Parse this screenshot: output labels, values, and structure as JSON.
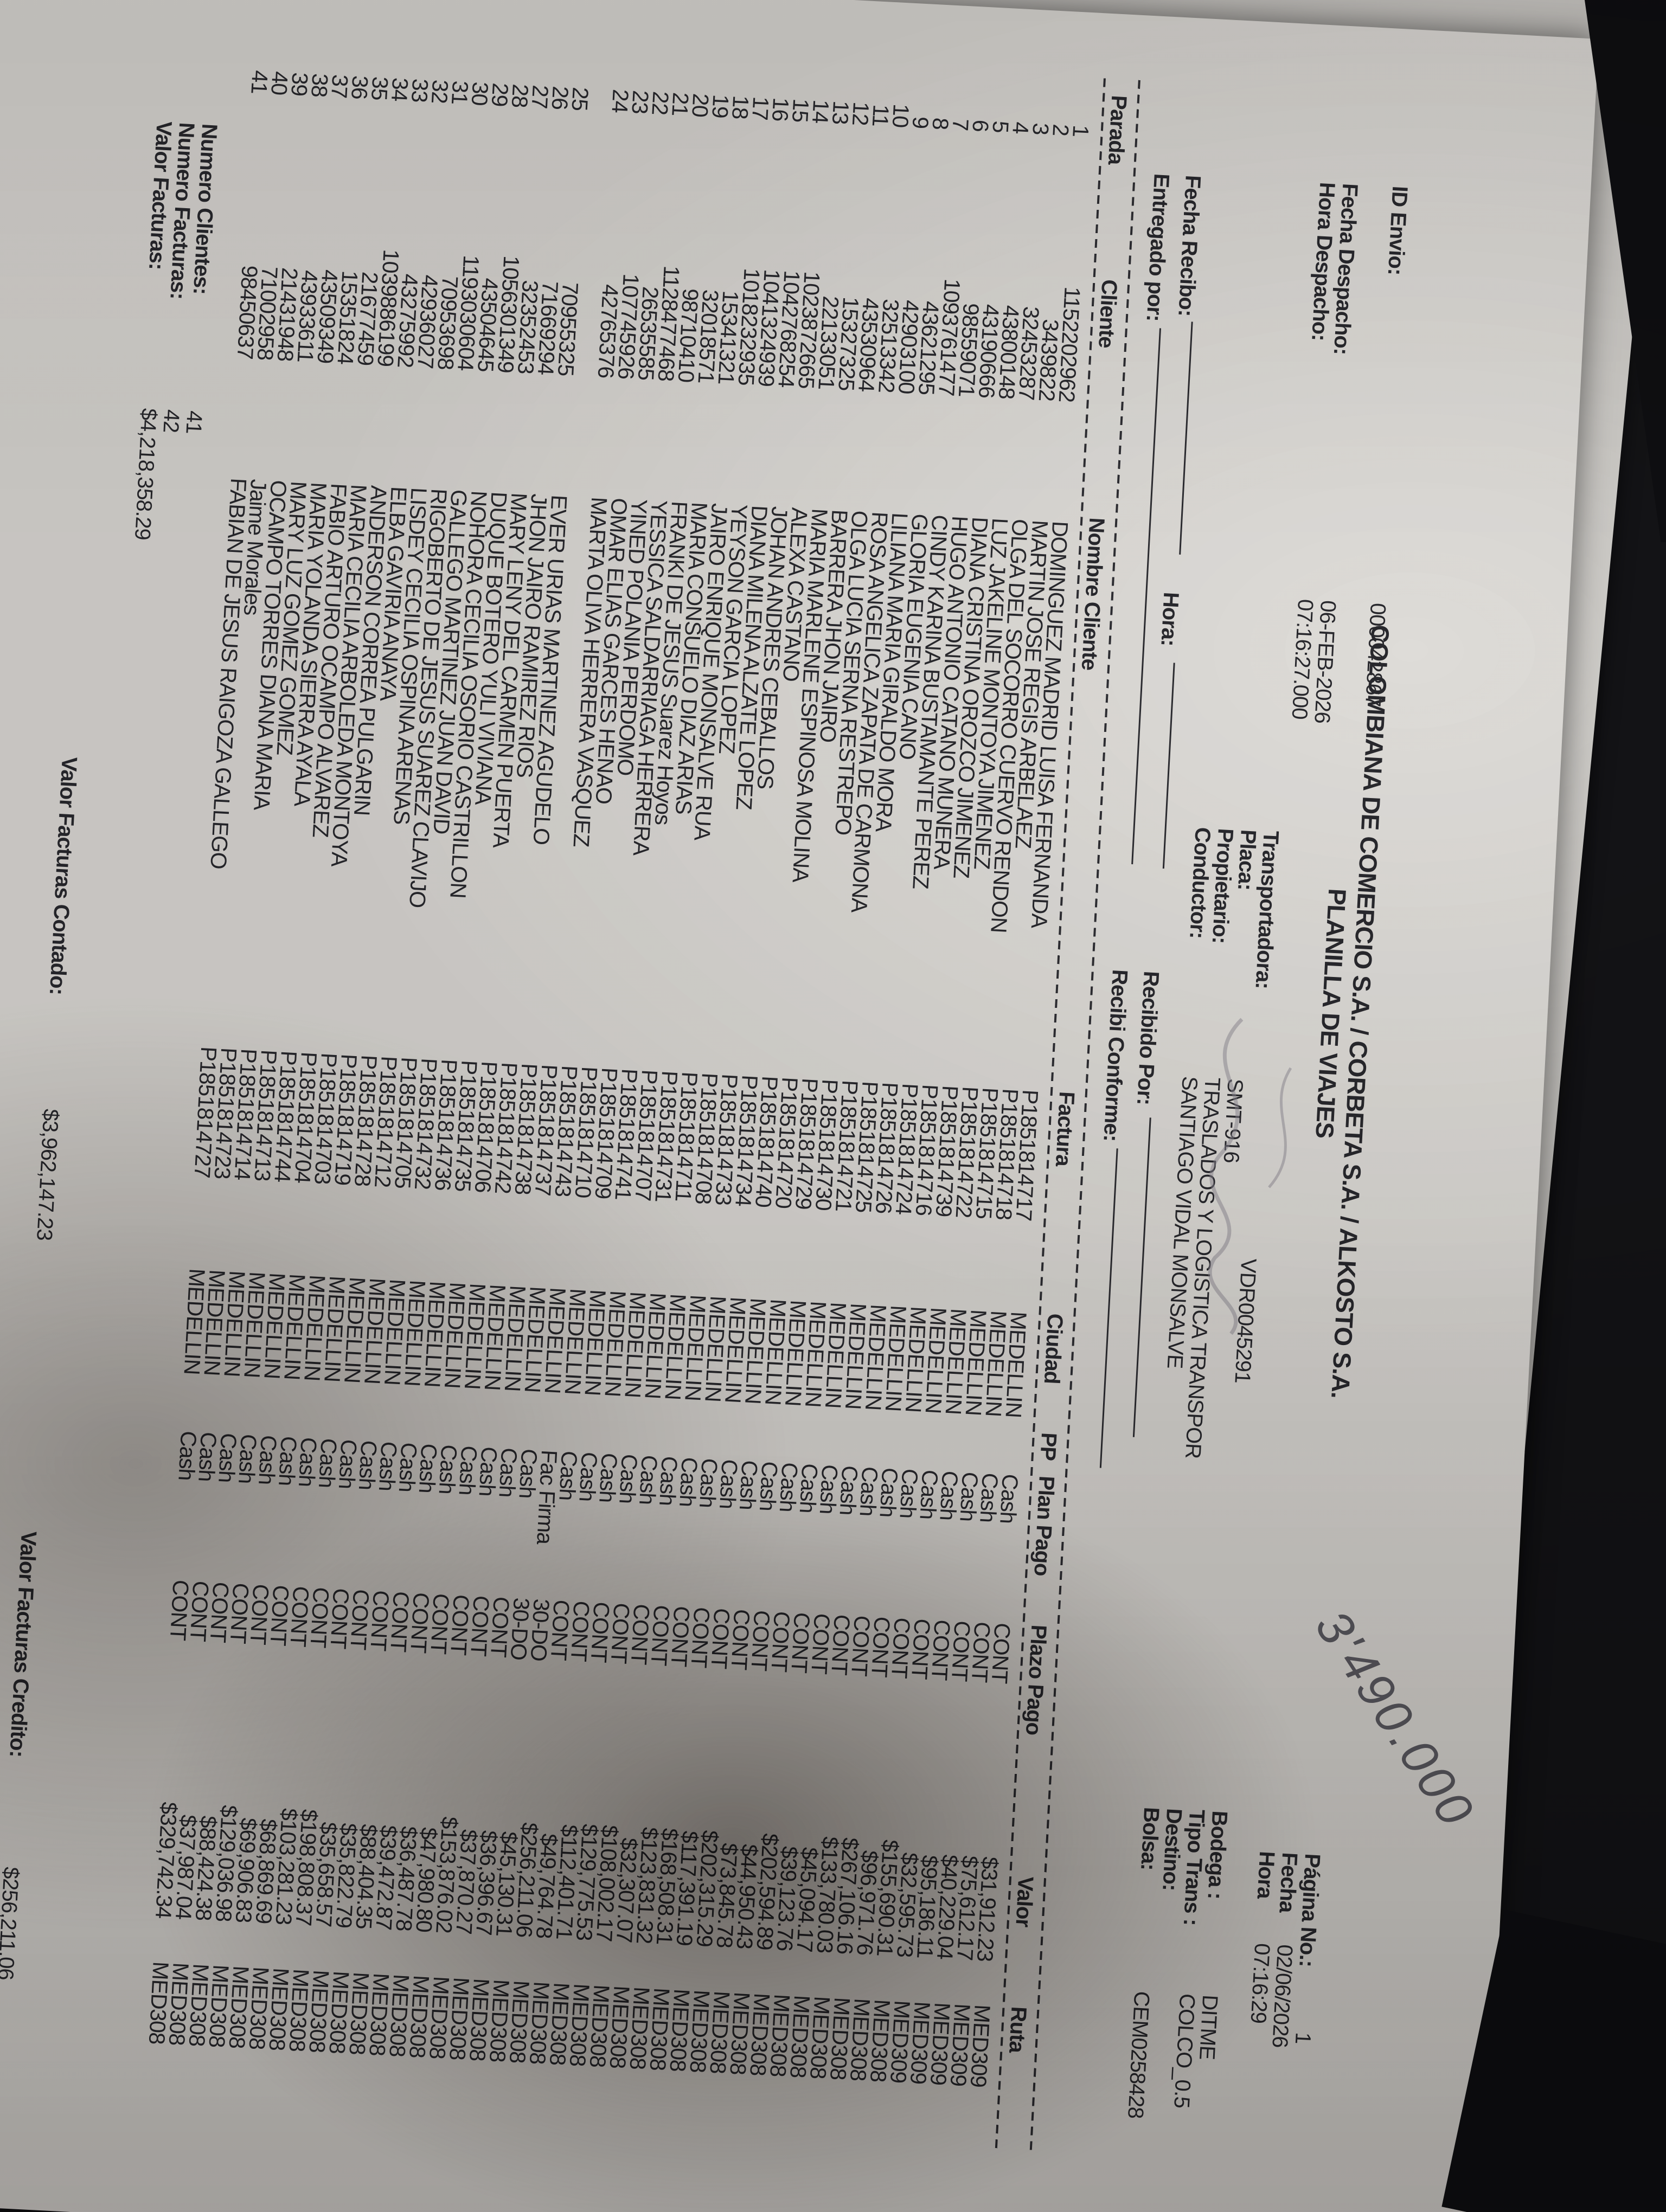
{
  "doc": {
    "company_title": "COLOMBIANA DE COMERCIO S.A. / CORBETA S.A. / ALKOSTO S.A.",
    "doc_title": "PLANILLA DE VIAJES",
    "id_envio_label": "ID Envio:",
    "id_envio": "000042867",
    "fecha_despacho_label": "Fecha Despacho:",
    "fecha_despacho": "06-FEB-2026",
    "hora_despacho_label": "Hora Despacho:",
    "hora_despacho": "07:16:27.000",
    "transportadora_label": "Transportadora:",
    "transportadora": "VDR0045291",
    "placa_label": "Placa:",
    "placa": "SMT-916",
    "propietario_label": "Propietario:",
    "propietario": "TRASLADOS Y LOGISTICA TRANSPOR",
    "conductor_label": "Conductor:",
    "conductor": "SANTIAGO VIDAL MONSALVE",
    "pagina_label": "Página No.:",
    "pagina": "1",
    "fecha_label": "Fecha",
    "fecha": "02/06/2026",
    "hora_label": "Hora",
    "hora": "07:16:29",
    "bodega_label": "Bodega :",
    "bodega": "DITME",
    "tipo_trans_label": "Tipo Trans :",
    "tipo_trans": "COLCO_0.5",
    "destino_label": "Destino:",
    "destino": "",
    "bolsa_label": "Bolsa:",
    "bolsa": "CEM0258428",
    "fecha_recibo_label": "Fecha Recibo:",
    "hora_recibo_label": "Hora:",
    "entregado_por_label": "Entregado por:",
    "recibido_por_label": "Recibido Por:",
    "recibi_conforme_label": "Recibi Conforme:"
  },
  "table": {
    "columns": [
      "Parada",
      "Cliente",
      "Nombre Cliente",
      "Factura",
      "Ciudad",
      "PP",
      "Plan Pago",
      "Plazo Pago",
      "Valor",
      "Ruta"
    ]
  },
  "rows": [
    {
      "parada": "1",
      "cliente": "1152202962",
      "nombre": "DOMINGUEZ MADRID LUISA FERNANDA",
      "factura": "P1851814717",
      "ciudad": "MEDELLIN",
      "pp": "",
      "plan": "Cash",
      "plazo": "CONT",
      "valor": "$31,912.23",
      "ruta": "MED309"
    },
    {
      "parada": "2",
      "cliente": "3439822",
      "nombre": "MARTIN JOSE REGIS ARBELAEZ",
      "factura": "P1851814718",
      "ciudad": "MEDELLIN",
      "pp": "",
      "plan": "Cash",
      "plazo": "CONT",
      "valor": "$75,612.17",
      "ruta": "MED309"
    },
    {
      "parada": "3",
      "cliente": "32453287",
      "nombre": "OLGA DEL SOCORRO CUERVO RENDON",
      "factura": "P1851814715",
      "ciudad": "MEDELLIN",
      "pp": "",
      "plan": "Cash",
      "plazo": "CONT",
      "valor": "$40,229.04",
      "ruta": "MED309"
    },
    {
      "parada": "4",
      "cliente": "43800148",
      "nombre": "LUZ JAKELINE MONTOYA JIMENEZ",
      "factura": "P1851814722",
      "ciudad": "MEDELLIN",
      "pp": "",
      "plan": "Cash",
      "plazo": "CONT",
      "valor": "$95,186.11",
      "ruta": "MED309"
    },
    {
      "parada": "5",
      "cliente": "43190666",
      "nombre": "DIANA CRISTINA OROZCO JIMENEZ",
      "factura": "P1851814739",
      "ciudad": "MEDELLIN",
      "pp": "",
      "plan": "Cash",
      "plazo": "CONT",
      "valor": "$32,595.73",
      "ruta": "MED309"
    },
    {
      "parada": "6",
      "cliente": "98559071",
      "nombre": "HUGO ANTONIO CATANO MUNERA",
      "factura": "P1851814716",
      "ciudad": "MEDELLIN",
      "pp": "",
      "plan": "Cash",
      "plazo": "CONT",
      "valor": "$155,690.31",
      "ruta": "MED308"
    },
    {
      "parada": "7",
      "cliente": "1093761477",
      "nombre": "CINDY KARINA BUSTAMANTE PEREZ",
      "factura": "P1851814724",
      "ciudad": "MEDELLIN",
      "pp": "",
      "plan": "Cash",
      "plazo": "CONT",
      "valor": "$96,971.76",
      "ruta": "MED308"
    },
    {
      "parada": "8",
      "cliente": "43621295",
      "nombre": "GLORIA EUGENIA CANO",
      "factura": "P1851814726",
      "ciudad": "MEDELLIN",
      "pp": "",
      "plan": "Cash",
      "plazo": "CONT",
      "valor": "$267,106.16",
      "ruta": "MED308"
    },
    {
      "parada": "9",
      "cliente": "42903100",
      "nombre": "LILIANA MARIA GIRALDO MORA",
      "factura": "P1851814725",
      "ciudad": "MEDELLIN",
      "pp": "",
      "plan": "Cash",
      "plazo": "CONT",
      "valor": "$133,780.03",
      "ruta": "MED308"
    },
    {
      "parada": "10",
      "cliente": "32513342",
      "nombre": "ROSA ANGELICA ZAPATA DE CARMONA",
      "factura": "P1851814721",
      "ciudad": "MEDELLIN",
      "pp": "",
      "plan": "Cash",
      "plazo": "CONT",
      "valor": "$45,094.17",
      "ruta": "MED308"
    },
    {
      "parada": "11",
      "cliente": "43530964",
      "nombre": "OLGA LUCIA SERNA RESTREPO",
      "factura": "P1851814730",
      "ciudad": "MEDELLIN",
      "pp": "",
      "plan": "Cash",
      "plazo": "CONT",
      "valor": "$39,123.76",
      "ruta": "MED308"
    },
    {
      "parada": "12",
      "cliente": "15327325",
      "nombre": "BARRERA JHON JAIRO",
      "factura": "P1851814729",
      "ciudad": "MEDELLIN",
      "pp": "",
      "plan": "Cash",
      "plazo": "CONT",
      "valor": "$202,594.89",
      "ruta": "MED308"
    },
    {
      "parada": "13",
      "cliente": "22133051",
      "nombre": "MARIA MARLENE ESPINOSA MOLINA",
      "factura": "P1851814720",
      "ciudad": "MEDELLIN",
      "pp": "",
      "plan": "Cash",
      "plazo": "CONT",
      "valor": "$44,950.43",
      "ruta": "MED308"
    },
    {
      "parada": "14",
      "cliente": "1023872665",
      "nombre": "ALEXA CASTANO",
      "factura": "P1851814740",
      "ciudad": "MEDELLIN",
      "pp": "",
      "plan": "Cash",
      "plazo": "CONT",
      "valor": "$73,845.78",
      "ruta": "MED308"
    },
    {
      "parada": "15",
      "cliente": "1042768254",
      "nombre": "JOHAN ANDRES CEBALLOS",
      "factura": "P1851814734",
      "ciudad": "MEDELLIN",
      "pp": "",
      "plan": "Cash",
      "plazo": "CONT",
      "valor": "$202,315.29",
      "ruta": "MED308"
    },
    {
      "parada": "16",
      "cliente": "1041324939",
      "nombre": "DIANA MILENA ALZATE LOPEZ",
      "factura": "P1851814733",
      "ciudad": "MEDELLIN",
      "pp": "",
      "plan": "Cash",
      "plazo": "CONT",
      "valor": "$117,391.19",
      "ruta": "MED308"
    },
    {
      "parada": "17",
      "cliente": "1018232935",
      "nombre": "YEYSON GARCIA LOPEZ",
      "factura": "P1851814708",
      "ciudad": "MEDELLIN",
      "pp": "",
      "plan": "Cash",
      "plazo": "CONT",
      "valor": "$168,508.31",
      "ruta": "MED308"
    },
    {
      "parada": "18",
      "cliente": "15341321",
      "nombre": "JAIRO ENRIQUE MONSALVE RUA",
      "factura": "P1851814711",
      "ciudad": "MEDELLIN",
      "pp": "",
      "plan": "Cash",
      "plazo": "CONT",
      "valor": "$123,831.32",
      "ruta": "MED308"
    },
    {
      "parada": "19",
      "cliente": "32018571",
      "nombre": "MARIA CONSUELO DIAZ ARIAS",
      "factura": "P1851814731",
      "ciudad": "MEDELLIN",
      "pp": "",
      "plan": "Cash",
      "plazo": "CONT",
      "valor": "$32,307.07",
      "ruta": "MED308"
    },
    {
      "parada": "20",
      "cliente": "98710410",
      "nombre": "FRANKI DE JESUS Suarez Hoyos",
      "factura": "P1851814707",
      "ciudad": "MEDELLIN",
      "pp": "",
      "plan": "Cash",
      "plazo": "CONT",
      "valor": "$108,002.17",
      "ruta": "MED308"
    },
    {
      "parada": "21",
      "cliente": "1128477468",
      "nombre": "YESSICA SALDARRIAGA HERRERA",
      "factura": "P1851814741",
      "ciudad": "MEDELLIN",
      "pp": "",
      "plan": "Cash",
      "plazo": "CONT",
      "valor": "$129,775.53",
      "ruta": "MED308"
    },
    {
      "parada": "22",
      "cliente": "26535585",
      "nombre": "YINED POLANIA PERDOMO",
      "factura": "P1851814709",
      "ciudad": "MEDELLIN",
      "pp": "",
      "plan": "Cash",
      "plazo": "CONT",
      "valor": "$112,401.71",
      "ruta": "MED308"
    },
    {
      "parada": "23",
      "cliente": "107745926",
      "nombre": "OMAR ELIAS GARCES HENAO",
      "factura": "P1851814710",
      "ciudad": "MEDELLIN",
      "pp": "",
      "plan": "Cash",
      "plazo": "CONT",
      "valor": "$49,764.78",
      "ruta": "MED308"
    },
    {
      "parada": "24",
      "cliente": "42765376",
      "nombre": "MARTA OLIVA HERRERA VASQUEZ",
      "factura": "P1851814743",
      "ciudad": "MEDELLIN",
      "pp": "",
      "plan": "Fac Firma",
      "plazo": "30-DO",
      "valor": "$256,211.06",
      "ruta": "MED308"
    },
    {
      "parada": "",
      "cliente": "",
      "nombre": "",
      "factura": "P1851814737",
      "ciudad": "MEDELLIN",
      "pp": "",
      "plan": "Cash",
      "plazo": "30-DO",
      "valor": "$45,130.31",
      "ruta": "MED308"
    },
    {
      "parada": "25",
      "cliente": "70955325",
      "nombre": "EVER URIAS MARTINEZ AGUDELO",
      "factura": "P1851814738",
      "ciudad": "MEDELLIN",
      "pp": "",
      "plan": "Cash",
      "plazo": "CONT",
      "valor": "$36,396.67",
      "ruta": "MED308"
    },
    {
      "parada": "26",
      "cliente": "71669294",
      "nombre": "JHON JAIRO RAMIREZ RIOS",
      "factura": "P1851814742",
      "ciudad": "MEDELLIN",
      "pp": "",
      "plan": "Cash",
      "plazo": "CONT",
      "valor": "$37,870.27",
      "ruta": "MED308"
    },
    {
      "parada": "27",
      "cliente": "32352453",
      "nombre": "MARY LENY DEL CARMEN PUERTA",
      "factura": "P1851814706",
      "ciudad": "MEDELLIN",
      "pp": "",
      "plan": "Cash",
      "plazo": "CONT",
      "valor": "$153,876.02",
      "ruta": "MED308"
    },
    {
      "parada": "28",
      "cliente": "1056301349",
      "nombre": "DUQUE BOTERO YULI VIVIANA",
      "factura": "P1851814735",
      "ciudad": "MEDELLIN",
      "pp": "",
      "plan": "Cash",
      "plazo": "CONT",
      "valor": "$47,980.80",
      "ruta": "MED308"
    },
    {
      "parada": "29",
      "cliente": "43504645",
      "nombre": "NOHORA CECILIA OSORIO CASTRILLON",
      "factura": "P1851814736",
      "ciudad": "MEDELLIN",
      "pp": "",
      "plan": "Cash",
      "plazo": "CONT",
      "valor": "$36,487.78",
      "ruta": "MED308"
    },
    {
      "parada": "30",
      "cliente": "1193030604",
      "nombre": "GALLEGO MARTINEZ JUAN DAVID",
      "factura": "P1851814732",
      "ciudad": "MEDELLIN",
      "pp": "",
      "plan": "Cash",
      "plazo": "CONT",
      "valor": "$39,472.87",
      "ruta": "MED308"
    },
    {
      "parada": "31",
      "cliente": "70953698",
      "nombre": "RIGOBERTO DE JESUS SUAREZ CLAVIJO",
      "factura": "P1851814705",
      "ciudad": "MEDELLIN",
      "pp": "",
      "plan": "Cash",
      "plazo": "CONT",
      "valor": "$88,404.35",
      "ruta": "MED308"
    },
    {
      "parada": "32",
      "cliente": "42936027",
      "nombre": "LISDEY CECILIA OSPINA ARENAS",
      "factura": "P1851814712",
      "ciudad": "MEDELLIN",
      "pp": "",
      "plan": "Cash",
      "plazo": "CONT",
      "valor": "$35,822.79",
      "ruta": "MED308"
    },
    {
      "parada": "33",
      "cliente": "43275992",
      "nombre": "ELBA GAVIRIA ANAYA",
      "factura": "P1851814728",
      "ciudad": "MEDELLIN",
      "pp": "",
      "plan": "Cash",
      "plazo": "CONT",
      "valor": "$35,658.57",
      "ruta": "MED308"
    },
    {
      "parada": "34",
      "cliente": "1039886199",
      "nombre": "ANDERSON CORREA PULGARIN",
      "factura": "P1851814719",
      "ciudad": "MEDELLIN",
      "pp": "",
      "plan": "Cash",
      "plazo": "CONT",
      "valor": "$198,808.37",
      "ruta": "MED308"
    },
    {
      "parada": "35",
      "cliente": "21677459",
      "nombre": "MARIA CECILIA ARBOLEDA MONTOYA",
      "factura": "P1851814703",
      "ciudad": "MEDELLIN",
      "pp": "",
      "plan": "Cash",
      "plazo": "CONT",
      "valor": "$103,281.23",
      "ruta": "MED308"
    },
    {
      "parada": "36",
      "cliente": "15351824",
      "nombre": "FABIO ARTURO OCAMPO ALVAREZ",
      "factura": "P1851814704",
      "ciudad": "MEDELLIN",
      "pp": "",
      "plan": "Cash",
      "plazo": "CONT",
      "valor": "$68,869.69",
      "ruta": "MED308"
    },
    {
      "parada": "37",
      "cliente": "43509349",
      "nombre": "MARIA YOLANDA SIERRA AYALA",
      "factura": "P1851814744",
      "ciudad": "MEDELLIN",
      "pp": "",
      "plan": "Cash",
      "plazo": "CONT",
      "valor": "$69,906.83",
      "ruta": "MED308"
    },
    {
      "parada": "38",
      "cliente": "43933611",
      "nombre": "MARY LUZ GOMEZ GOMEZ",
      "factura": "P1851814713",
      "ciudad": "MEDELLIN",
      "pp": "",
      "plan": "Cash",
      "plazo": "CONT",
      "valor": "$129,036.98",
      "ruta": "MED308"
    },
    {
      "parada": "39",
      "cliente": "21431948",
      "nombre": "OCAMPO TORRES DIANA MARIA",
      "factura": "P1851814714",
      "ciudad": "MEDELLIN",
      "pp": "",
      "plan": "Cash",
      "plazo": "CONT",
      "valor": "$88,424.38",
      "ruta": "MED308"
    },
    {
      "parada": "40",
      "cliente": "71002958",
      "nombre": "Jaime Morales",
      "factura": "P1851814723",
      "ciudad": "MEDELLIN",
      "pp": "",
      "plan": "Cash",
      "plazo": "CONT",
      "valor": "$37,987.04",
      "ruta": "MED308"
    },
    {
      "parada": "41",
      "cliente": "98450637",
      "nombre": "FABIAN DE JESUS RAIGOZA GALLEGO",
      "factura": "P1851814727",
      "ciudad": "MEDELLIN",
      "pp": "",
      "plan": "Cash",
      "plazo": "CONT",
      "valor": "$329,742.34",
      "ruta": "MED308"
    }
  ],
  "totals": {
    "num_clientes_label": "Numero Clientes:",
    "num_clientes": "41",
    "num_facturas_label": "Numero Facturas:",
    "num_facturas": "42",
    "valor_facturas_label": "Valor Facturas:",
    "valor_facturas": "$4,218,358.29",
    "contado_label": "Valor Facturas Contado:",
    "contado": "$3,962,147.23",
    "credito_label": "Valor Facturas Credito:",
    "credito": "$256,211.06"
  },
  "annotations": {
    "handwritten_amount": "3'490.000"
  }
}
